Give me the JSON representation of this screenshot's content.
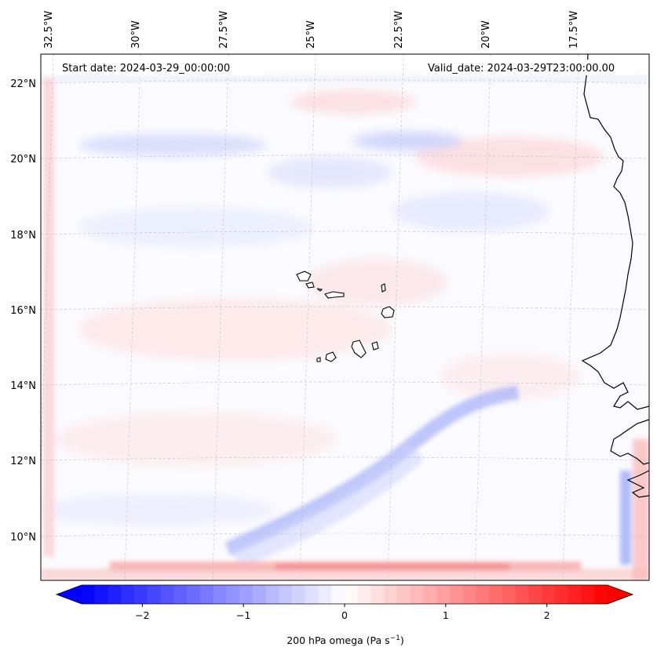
{
  "map": {
    "start_label": "Start date: 2024-03-29_00:00:00",
    "valid_label": "Valid_date: 2024-03-29T23:00:00.00",
    "lon_ticks": [
      "32.5°W",
      "30°W",
      "27.5°W",
      "25°W",
      "22.5°W",
      "20°W",
      "17.5°W"
    ],
    "lat_ticks": [
      "22°N",
      "20°N",
      "18°N",
      "16°N",
      "14°N",
      "12°N",
      "10°N"
    ],
    "colorbar": {
      "label": "200 hPa omega (Pa s",
      "label_sup": "−1",
      "label_end": ")",
      "ticks": [
        "−2",
        "−1",
        "0",
        "1",
        "2"
      ],
      "tick_values": [
        -2,
        -1,
        0,
        1,
        2
      ],
      "range": [
        -2.6,
        2.6
      ],
      "colors": {
        "min": "#0000ff",
        "mid": "#ffffff",
        "max": "#ff0000"
      }
    },
    "colors": {
      "coastline": "#000000",
      "grid": "#b0b0b0"
    }
  }
}
